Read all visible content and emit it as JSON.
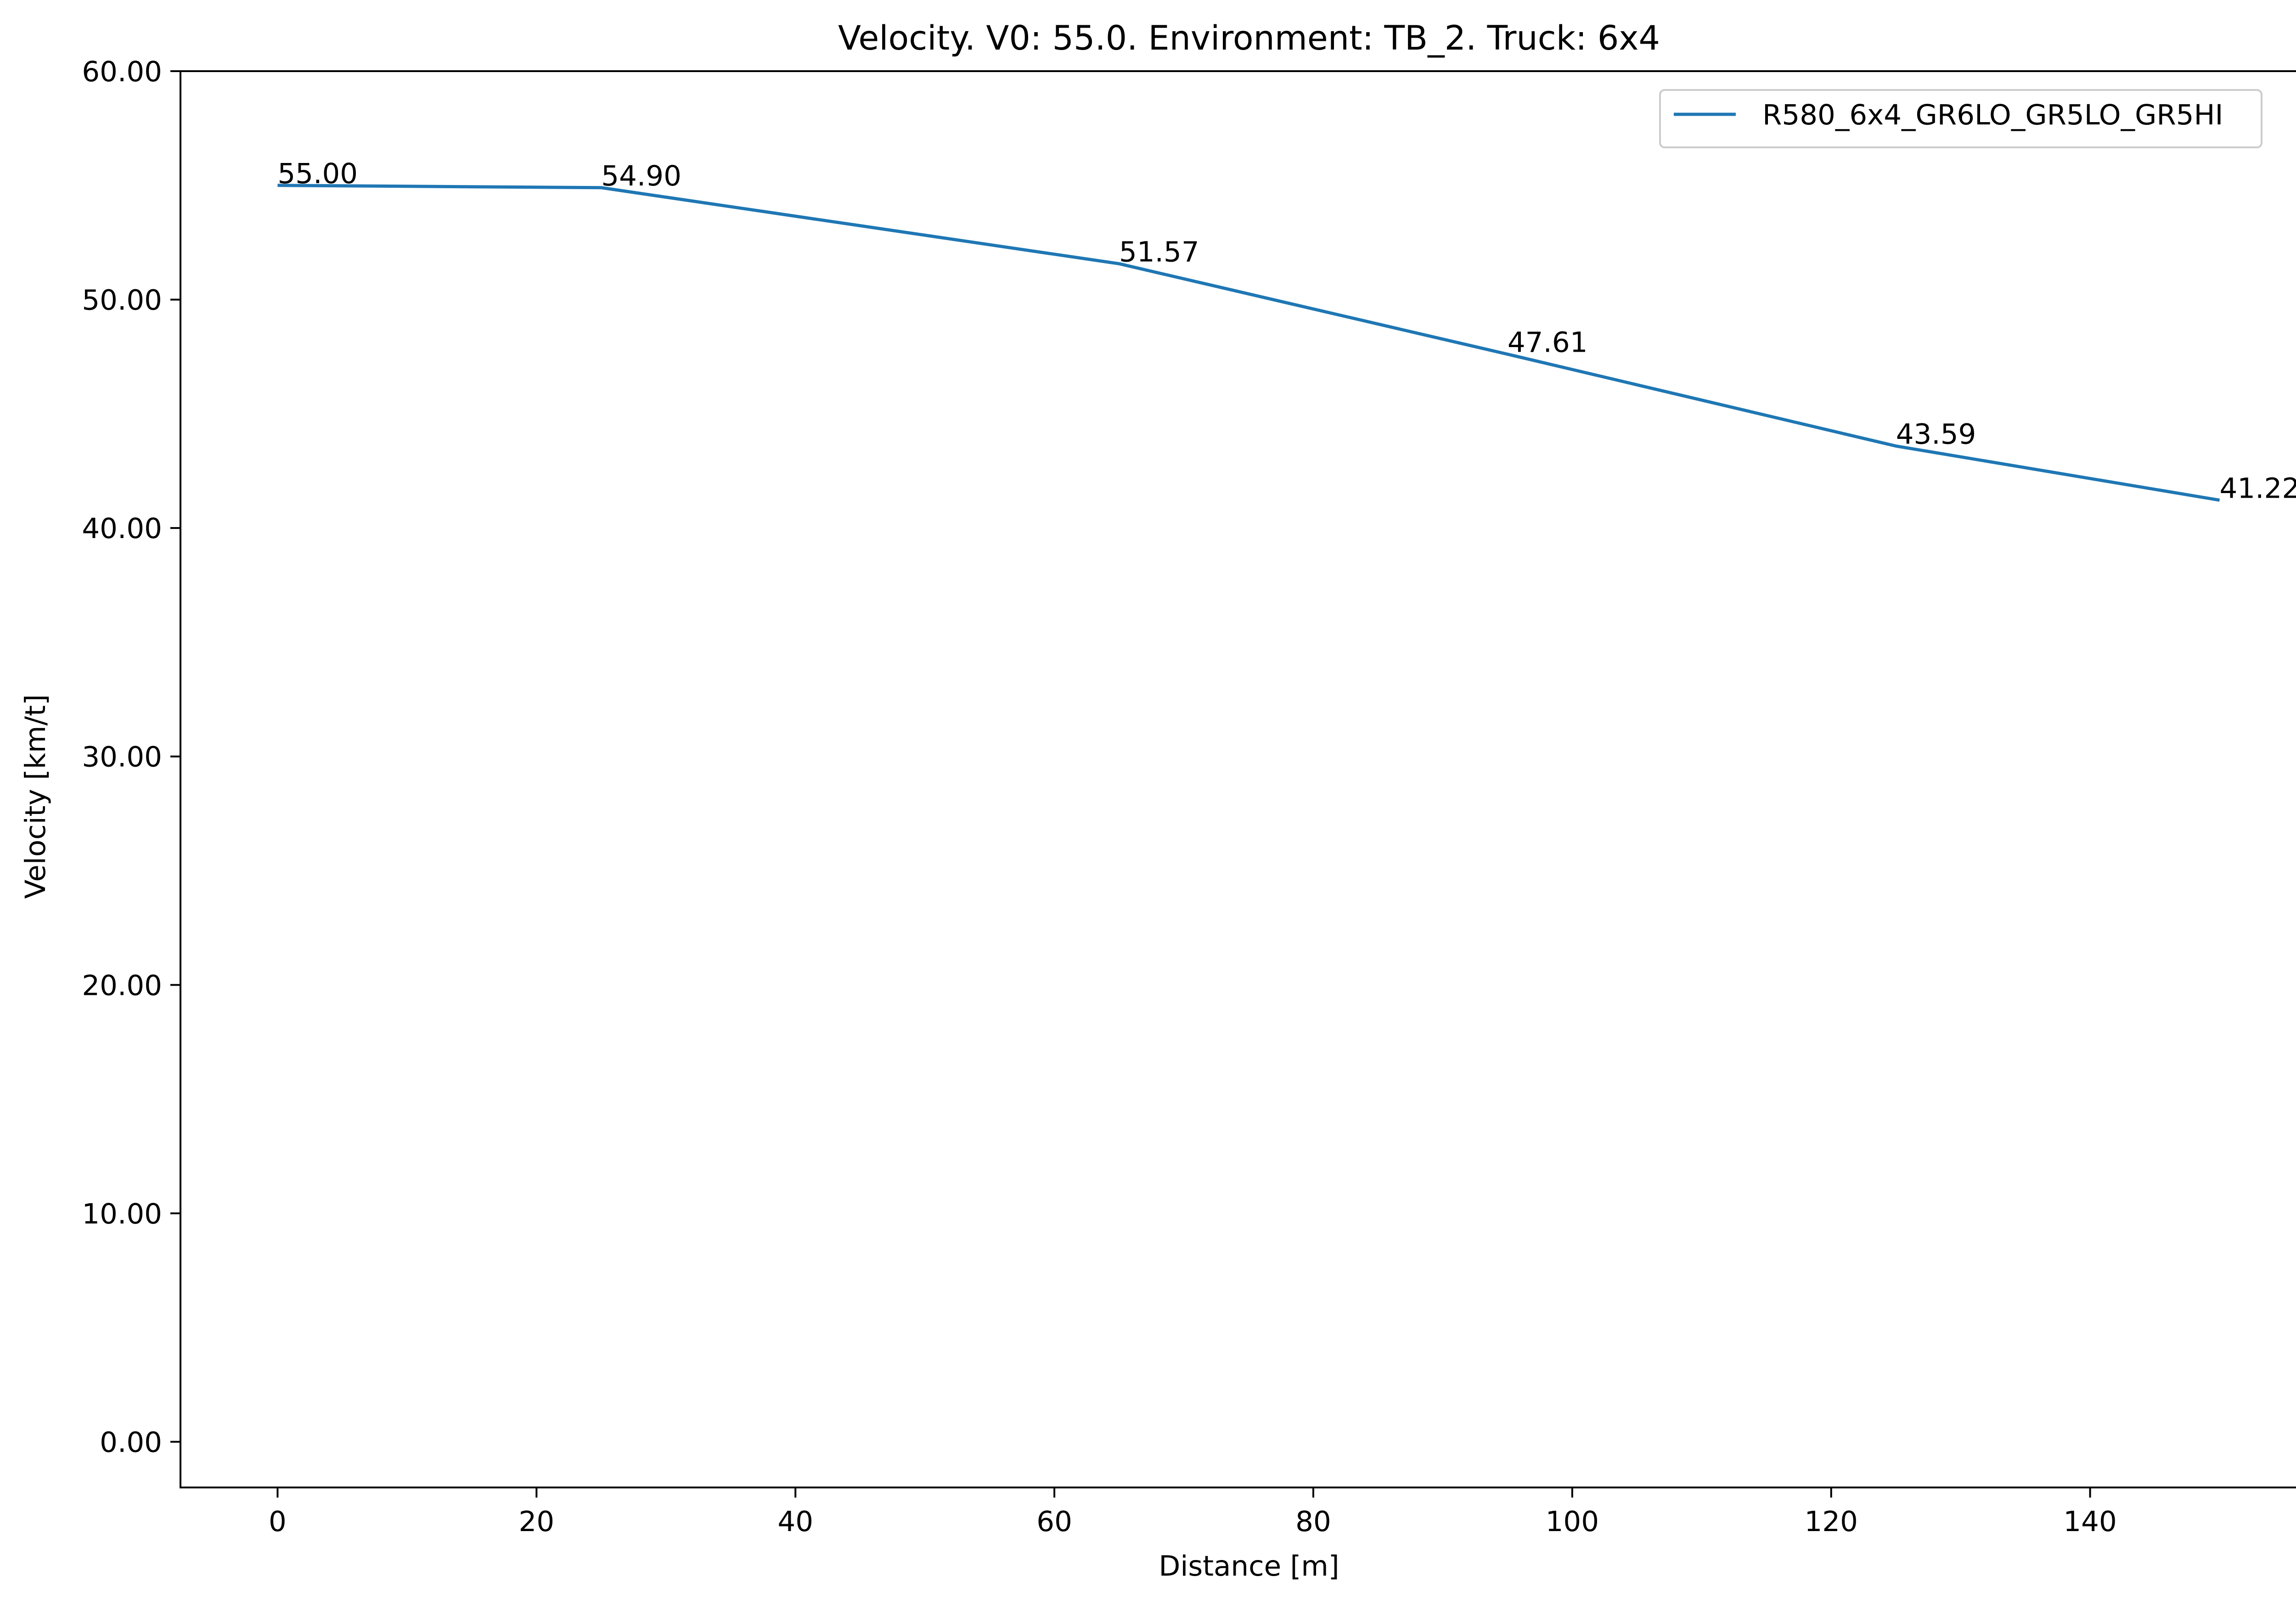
{
  "chart_data": {
    "type": "line",
    "title": "Velocity. V0: 55.0. Environment: TB_2. Truck: 6x4",
    "xlabel": "Distance [m]",
    "ylabel": "Velocity [km/t]",
    "xlim": [
      -7.5,
      157.5
    ],
    "ylim": [
      -2,
      60
    ],
    "xticks": [
      0,
      20,
      40,
      60,
      80,
      100,
      120,
      140
    ],
    "yticks": [
      0,
      10,
      20,
      30,
      40,
      50,
      60
    ],
    "ytick_labels": [
      "0.00",
      "10.00",
      "20.00",
      "30.00",
      "40.00",
      "50.00",
      "60.00"
    ],
    "grid": false,
    "legend_position": "top-right",
    "series": [
      {
        "name": "R580_6x4_GR6LO_GR5LO_GR5HI",
        "color": "#1f77b4",
        "x": [
          0,
          25,
          65,
          95,
          125,
          150
        ],
        "y": [
          55.0,
          54.9,
          51.57,
          47.61,
          43.59,
          41.22
        ],
        "labels": [
          "55.00",
          "54.90",
          "51.57",
          "47.61",
          "43.59",
          "41.22"
        ]
      }
    ]
  }
}
